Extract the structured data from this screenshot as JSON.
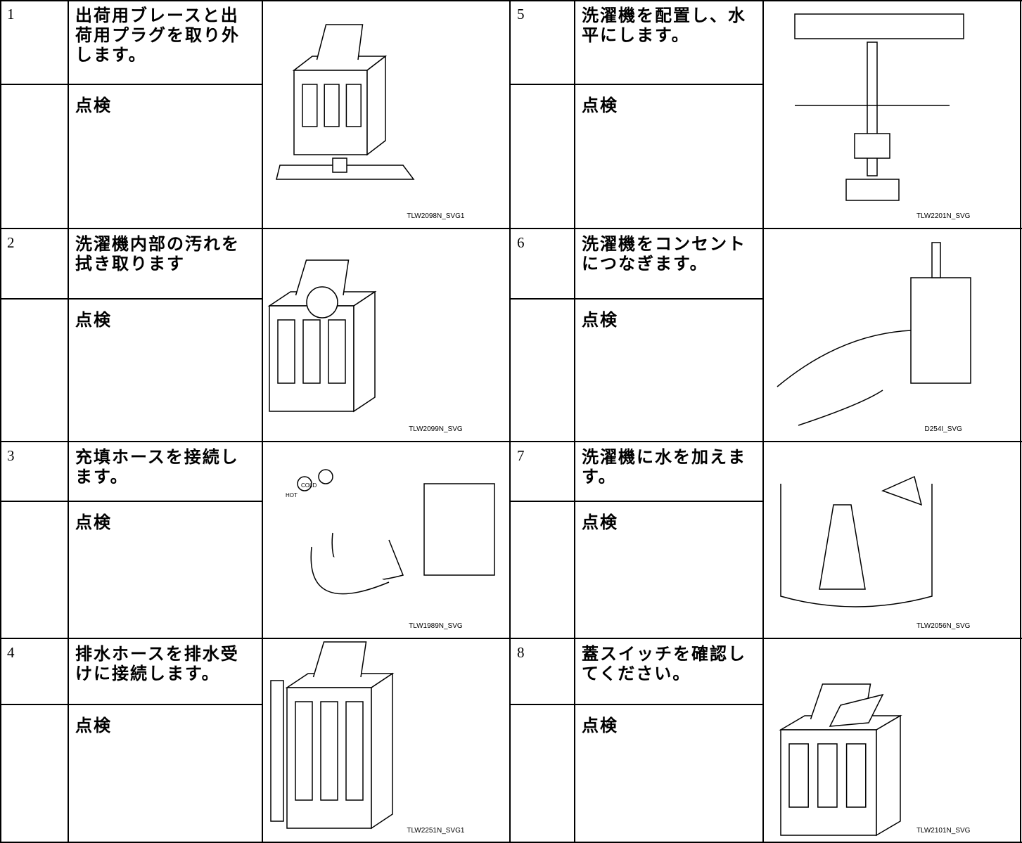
{
  "steps": [
    {
      "number": "1",
      "title": "出荷用ブレースと出荷用プラグを取り外します。",
      "check": "点検",
      "figure_code": "TLW2098N_SVG1"
    },
    {
      "number": "2",
      "title": "洗濯機内部の汚れを拭き取ります",
      "check": "点検",
      "figure_code": "TLW2099N_SVG"
    },
    {
      "number": "3",
      "title": "充填ホースを接続します。",
      "check": "点検",
      "figure_code": "TLW1989N_SVG",
      "figure_labels": [
        "COLD",
        "HOT"
      ]
    },
    {
      "number": "4",
      "title": "排水ホースを排水受けに接続します。",
      "check": "点検",
      "figure_code": "TLW2251N_SVG1"
    },
    {
      "number": "5",
      "title": "洗濯機を配置し、水平にします。",
      "check": "点検",
      "figure_code": "TLW2201N_SVG"
    },
    {
      "number": "6",
      "title": "洗濯機をコンセントにつなぎます。",
      "check": "点検",
      "figure_code": "D254I_SVG"
    },
    {
      "number": "7",
      "title": "洗濯機に水を加えます。",
      "check": "点検",
      "figure_code": "TLW2056N_SVG"
    },
    {
      "number": "8",
      "title": "蓋スイッチを確認してください。",
      "check": "点検",
      "figure_code": "TLW2101N_SVG"
    }
  ]
}
